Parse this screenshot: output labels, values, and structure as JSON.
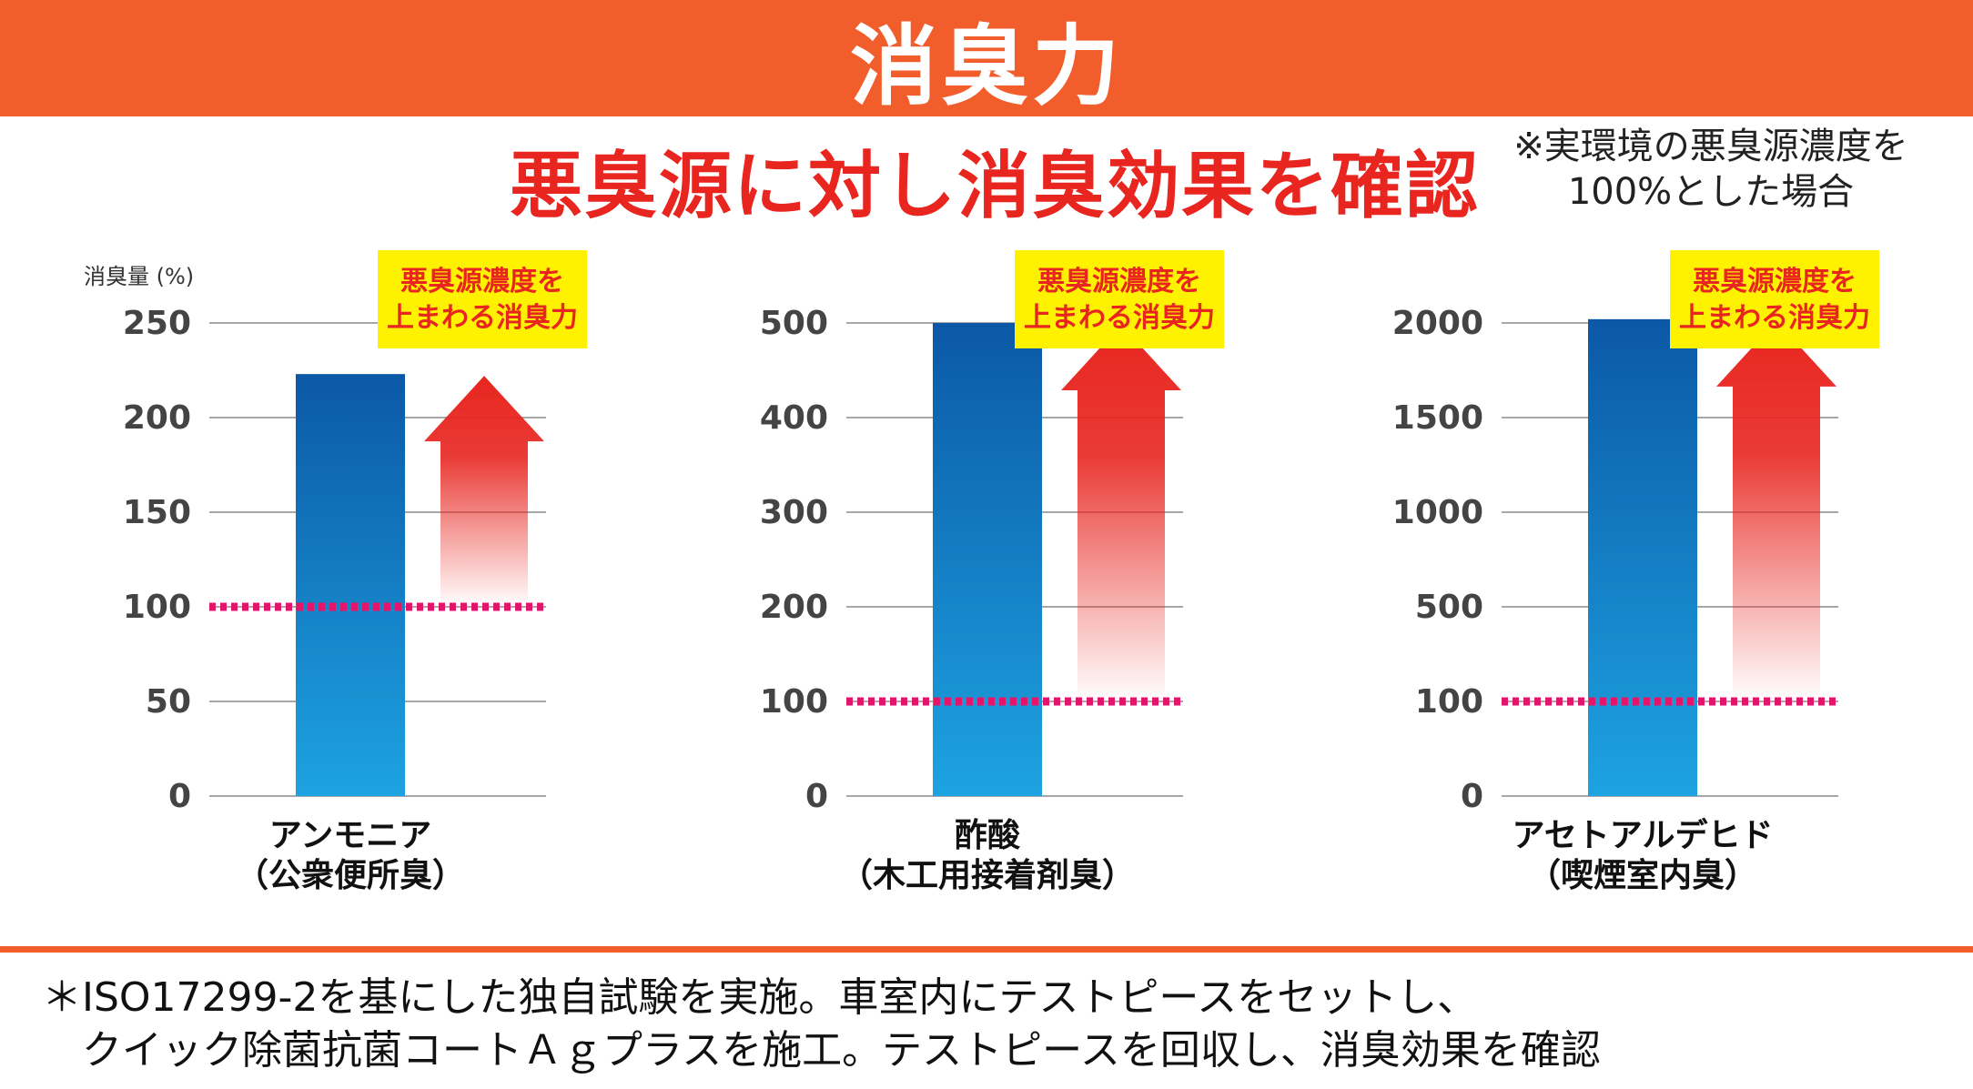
{
  "header": {
    "title": "消臭力"
  },
  "subtitle": "悪臭源に対し消臭効果を確認",
  "note": {
    "line1": "※実環境の悪臭源濃度を",
    "line2": "100%とした場合"
  },
  "colors": {
    "header": "#F15E2B",
    "subtitle": "#E8251F",
    "bar_top": "#0B58A6",
    "bar_bottom": "#1DA3E0",
    "arrow": "#E8251F",
    "reference_line": "#E5146B",
    "callout_bg": "#FFF200",
    "grid": "#8A8A8A"
  },
  "chart_data": [
    {
      "type": "bar",
      "ylabel": "消臭量 (%)",
      "category_lines": [
        "アンモニア",
        "（公衆便所臭）"
      ],
      "value": 223,
      "reference": 100,
      "ylim": [
        0,
        250
      ],
      "ticks": [
        0,
        50,
        100,
        150,
        200,
        250
      ],
      "callout": [
        "悪臭源濃度を",
        "上まわる消臭力"
      ],
      "scale": "linear"
    },
    {
      "type": "bar",
      "ylabel": "",
      "category_lines": [
        "酢酸",
        "（木工用接着剤臭）"
      ],
      "value": 500,
      "reference": 100,
      "ylim": [
        0,
        500
      ],
      "ticks": [
        0,
        100,
        200,
        300,
        400,
        500
      ],
      "callout": [
        "悪臭源濃度を",
        "上まわる消臭力"
      ],
      "scale": "linear"
    },
    {
      "type": "bar",
      "ylabel": "",
      "category_lines": [
        "アセトアルデヒド",
        "（喫煙室内臭）"
      ],
      "value": 2020,
      "reference": 100,
      "ylim": [
        0,
        2000
      ],
      "ticks": [
        0,
        100,
        500,
        1000,
        1500,
        2000
      ],
      "callout": [
        "悪臭源濃度を",
        "上まわる消臭力"
      ],
      "scale": "broken"
    }
  ],
  "footnote": {
    "line1": "＊ISO17299-2を基にした独自試験を実施。車室内にテストピースをセットし、",
    "line2": "　クイック除菌抗菌コートＡｇプラスを施工。テストピースを回収し、消臭効果を確認"
  }
}
